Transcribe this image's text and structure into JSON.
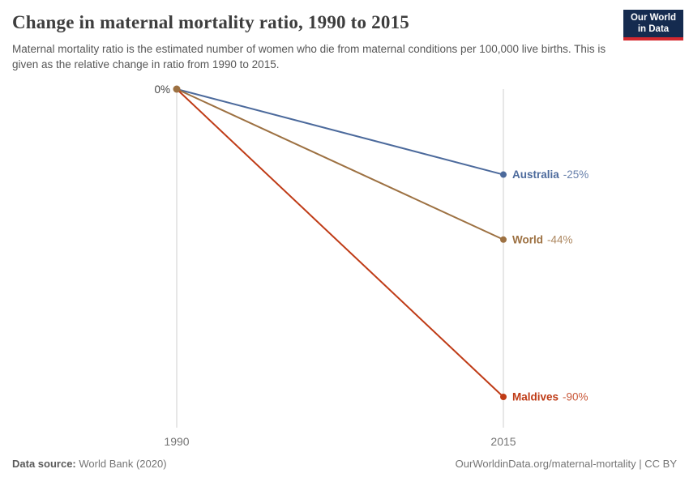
{
  "header": {
    "title": "Change in maternal mortality ratio, 1990 to 2015",
    "subtitle": "Maternal mortality ratio is the estimated number of women who die from maternal conditions per 100,000 live births. This is given as the relative change in ratio from 1990 to 2015.",
    "logo": {
      "line1": "Our World",
      "line2": "in Data",
      "bg_color": "#152B4F",
      "accent_color": "#D4292F",
      "text_color": "#FFFFFF"
    }
  },
  "chart_data": {
    "type": "line",
    "subtype": "slope",
    "title": "Change in maternal mortality ratio, 1990 to 2015",
    "x": [
      1990,
      2015
    ],
    "x_tick_labels": [
      "1990",
      "2015"
    ],
    "y_axis": {
      "range": [
        -90,
        0
      ],
      "zero_label": "0%",
      "unit": "%"
    },
    "grid": "two vertical axis lines only",
    "legend": "series labels at right line ends",
    "axis_color": "#CFCFCF",
    "tick_label_color": "#757575",
    "zero_label_color": "#454545",
    "series": [
      {
        "name": "Australia",
        "values": [
          0,
          -25
        ],
        "value_label": "-25%",
        "color": "#4C6A9C"
      },
      {
        "name": "World",
        "values": [
          0,
          -44
        ],
        "value_label": "-44%",
        "color": "#9D7142"
      },
      {
        "name": "Maldives",
        "values": [
          0,
          -90
        ],
        "value_label": "-90%",
        "color": "#BF3B16"
      }
    ],
    "start_dot_color": "#9D7142"
  },
  "footer": {
    "source_label": "Data source:",
    "source_value": "World Bank (2020)",
    "credit": "OurWorldinData.org/maternal-mortality | CC BY"
  }
}
